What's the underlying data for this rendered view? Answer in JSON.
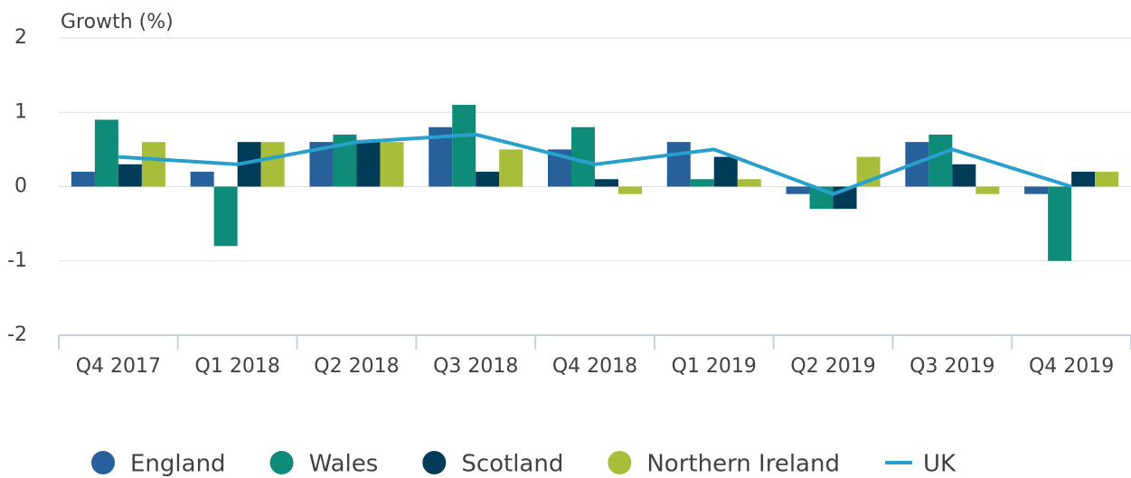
{
  "chart_data": {
    "type": "bar",
    "y_label": "Growth (%)",
    "categories": [
      "Q4 2017",
      "Q1 2018",
      "Q2 2018",
      "Q3 2018",
      "Q4 2018",
      "Q1 2019",
      "Q2 2019",
      "Q3 2019",
      "Q4 2019"
    ],
    "series": [
      {
        "name": "England",
        "color": "#27609b",
        "values": [
          0.2,
          0.2,
          0.6,
          0.8,
          0.5,
          0.6,
          -0.1,
          0.6,
          -0.1
        ]
      },
      {
        "name": "Wales",
        "color": "#0f8c79",
        "values": [
          0.9,
          -0.8,
          0.7,
          1.1,
          0.8,
          0.1,
          -0.3,
          0.7,
          -1.0
        ]
      },
      {
        "name": "Scotland",
        "color": "#003c57",
        "values": [
          0.3,
          0.6,
          0.6,
          0.2,
          0.1,
          0.4,
          -0.3,
          0.3,
          0.2
        ]
      },
      {
        "name": "Northern Ireland",
        "color": "#a8bd3a",
        "values": [
          0.6,
          0.6,
          0.6,
          0.5,
          -0.1,
          0.1,
          0.4,
          -0.1,
          0.2
        ]
      },
      {
        "name": "UK",
        "color": "#27a0cc",
        "type": "line",
        "values": [
          0.4,
          0.3,
          0.6,
          0.7,
          0.3,
          0.5,
          -0.1,
          0.5,
          0.0
        ]
      }
    ],
    "ylim": [
      -2,
      2
    ],
    "yticks": [
      -2,
      -1,
      0,
      1,
      2
    ],
    "grid": true,
    "legend": "bottom"
  }
}
